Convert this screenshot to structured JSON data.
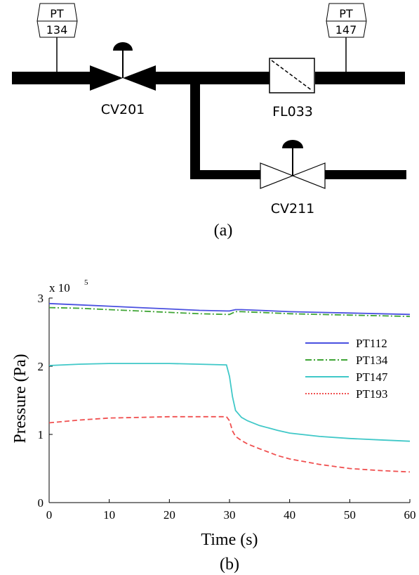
{
  "diagram": {
    "caption": "(a)",
    "instruments": [
      {
        "type": "PT",
        "tag": "134"
      },
      {
        "type": "PT",
        "tag": "147"
      }
    ],
    "components": {
      "valve_top": "CV201",
      "filter": "FL033",
      "valve_bottom": "CV211"
    }
  },
  "chart_caption": "(b)",
  "chart_data": {
    "type": "line",
    "xlabel": "Time (s)",
    "ylabel": "Pressure (Pa)",
    "y_multiplier_label": "x 10",
    "y_multiplier_exp": "5",
    "xlim": [
      0,
      60
    ],
    "ylim": [
      0,
      3
    ],
    "xticks": [
      0,
      10,
      20,
      30,
      40,
      50,
      60
    ],
    "yticks": [
      0,
      1,
      2,
      3
    ],
    "grid": false,
    "legend_position": "right",
    "series": [
      {
        "name": "PT112",
        "color": "#4a50e0",
        "dash": "solid",
        "x": [
          0,
          5,
          10,
          15,
          20,
          25,
          29.5,
          30,
          31,
          32,
          35,
          40,
          45,
          50,
          55,
          60
        ],
        "y": [
          2.92,
          2.9,
          2.88,
          2.86,
          2.84,
          2.82,
          2.81,
          2.81,
          2.83,
          2.83,
          2.82,
          2.8,
          2.79,
          2.78,
          2.77,
          2.76
        ]
      },
      {
        "name": "PT134",
        "color": "#3fa535",
        "dash": "dashdot",
        "x": [
          0,
          5,
          10,
          15,
          20,
          25,
          29.5,
          30,
          31,
          32,
          35,
          40,
          45,
          50,
          55,
          60
        ],
        "y": [
          2.86,
          2.85,
          2.83,
          2.81,
          2.79,
          2.77,
          2.76,
          2.76,
          2.8,
          2.8,
          2.79,
          2.77,
          2.76,
          2.75,
          2.74,
          2.73
        ]
      },
      {
        "name": "PT147",
        "color": "#40c8c8",
        "dash": "solid",
        "x": [
          0,
          5,
          10,
          15,
          20,
          25,
          29.5,
          30,
          30.5,
          31,
          32,
          33,
          35,
          38,
          40,
          45,
          50,
          55,
          60
        ],
        "y": [
          2.01,
          2.03,
          2.04,
          2.04,
          2.04,
          2.03,
          2.02,
          1.85,
          1.55,
          1.35,
          1.25,
          1.2,
          1.13,
          1.06,
          1.02,
          0.97,
          0.94,
          0.92,
          0.9
        ]
      },
      {
        "name": "PT193",
        "color": "#f05050",
        "dash": "dashed",
        "x": [
          0,
          5,
          10,
          15,
          20,
          25,
          29.5,
          30,
          30.5,
          31,
          32,
          33,
          35,
          38,
          40,
          45,
          50,
          55,
          60
        ],
        "y": [
          1.17,
          1.21,
          1.24,
          1.25,
          1.26,
          1.26,
          1.26,
          1.2,
          1.05,
          0.97,
          0.91,
          0.86,
          0.79,
          0.69,
          0.64,
          0.56,
          0.5,
          0.47,
          0.45
        ]
      }
    ]
  }
}
